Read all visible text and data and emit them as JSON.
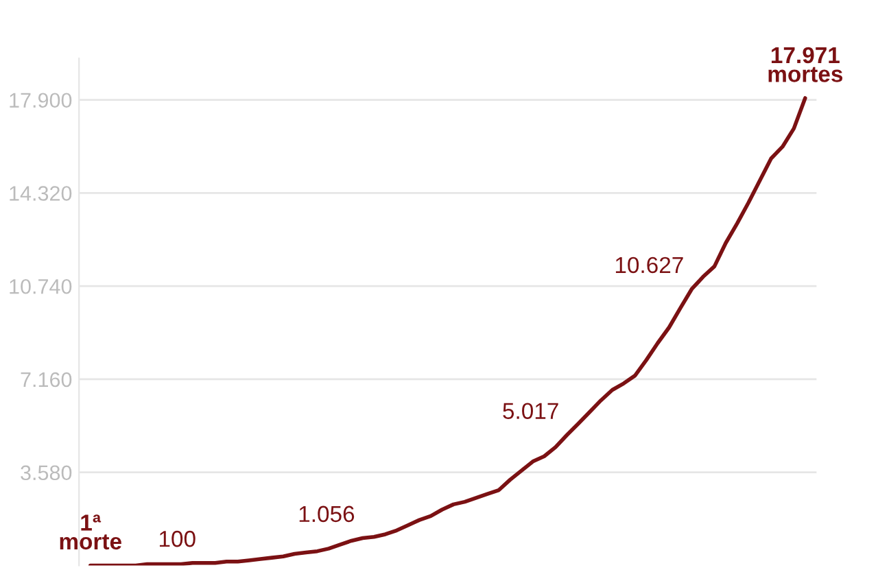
{
  "chart_data": {
    "type": "line",
    "categories": [
      null,
      null,
      null,
      null,
      null,
      null,
      null,
      null,
      null,
      null,
      null,
      null,
      null,
      null,
      null,
      null,
      null,
      null,
      null,
      null,
      null,
      null,
      null,
      null,
      null,
      null,
      null,
      null,
      null,
      null,
      null,
      null,
      null,
      null,
      null,
      null,
      null,
      null,
      null,
      null,
      null,
      null,
      null,
      null,
      null,
      null,
      null,
      null,
      null,
      null,
      null,
      null,
      null,
      null,
      null,
      null,
      null,
      null,
      null,
      null,
      null,
      null,
      null,
      null
    ],
    "series": [
      {
        "color": "#7b1113",
        "values": [
          1,
          1,
          1,
          1,
          1,
          50,
          50,
          50,
          50,
          100,
          100,
          100,
          150,
          150,
          200,
          250,
          300,
          350,
          450,
          500,
          550,
          650,
          800,
          950,
          1056,
          1100,
          1200,
          1350,
          1550,
          1750,
          1900,
          2150,
          2350,
          2450,
          2600,
          2750,
          2900,
          3300,
          3650,
          4000,
          4200,
          4550,
          5017,
          5450,
          5900,
          6350,
          6750,
          7000,
          7300,
          7900,
          8550,
          9150,
          9900,
          10627,
          11100,
          11500,
          12400,
          13150,
          13950,
          14800,
          15650,
          16100,
          16800,
          17971
        ],
        "value_labels": [
          "1ª\nmorte",
          null,
          null,
          null,
          null,
          null,
          null,
          null,
          null,
          null,
          "100",
          null,
          null,
          null,
          null,
          null,
          null,
          null,
          null,
          null,
          null,
          null,
          null,
          null,
          "1.056",
          null,
          null,
          null,
          null,
          null,
          null,
          null,
          null,
          null,
          null,
          null,
          null,
          null,
          null,
          null,
          null,
          null,
          "5.017",
          null,
          null,
          null,
          null,
          null,
          null,
          null,
          null,
          null,
          null,
          "10.627",
          null,
          null,
          null,
          null,
          null,
          null,
          null,
          null,
          null,
          "17.971\nmortes"
        ]
      }
    ],
    "ylim": [
      0,
      19500
    ],
    "yticks": [
      {
        "value": 3580,
        "label": "3.580"
      },
      {
        "value": 7160,
        "label": "7.160"
      },
      {
        "value": 10740,
        "label": "10.740"
      },
      {
        "value": 14320,
        "label": "14.320"
      },
      {
        "value": 17900,
        "label": "17.900"
      }
    ],
    "grid": "y",
    "tick_labels": "y",
    "line_style": "solid"
  }
}
